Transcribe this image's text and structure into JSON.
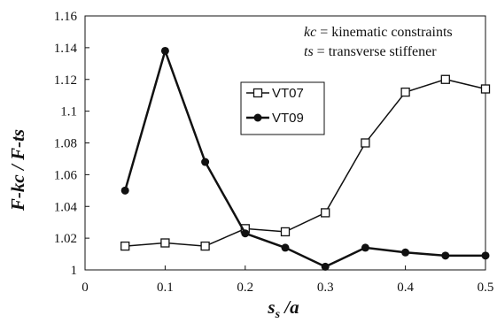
{
  "chart_data": {
    "type": "line",
    "xlabel": {
      "main": "s",
      "sub": "s",
      "rest": " /a"
    },
    "ylabel": "F-kc / F-ts",
    "xlim": [
      0,
      0.5
    ],
    "ylim": [
      1,
      1.16
    ],
    "x_ticks": [
      0,
      0.1,
      0.2,
      0.3,
      0.4,
      0.5
    ],
    "x_tick_labels": [
      "0",
      "0.1",
      "0.2",
      "0.3",
      "0.4",
      "0.5"
    ],
    "y_ticks": [
      1,
      1.02,
      1.04,
      1.06,
      1.08,
      1.1,
      1.12,
      1.14,
      1.16
    ],
    "y_tick_labels": [
      "1",
      "1.02",
      "1.04",
      "1.06",
      "1.08",
      "1.1",
      "1.12",
      "1.14",
      "1.16"
    ],
    "grid": false,
    "legend_position": "center-right",
    "annotations": [
      {
        "abbr": "kc",
        "text": " = kinematic  constraints"
      },
      {
        "abbr": "ts",
        "text": " = transverse  stiffener"
      }
    ],
    "series": [
      {
        "name": "VT07",
        "marker": "open-square",
        "color": "#111111",
        "x": [
          0.05,
          0.1,
          0.15,
          0.2,
          0.25,
          0.3,
          0.35,
          0.4,
          0.45,
          0.5
        ],
        "y": [
          1.015,
          1.017,
          1.015,
          1.026,
          1.024,
          1.036,
          1.08,
          1.112,
          1.12,
          1.114
        ]
      },
      {
        "name": "VT09",
        "marker": "filled-circle",
        "color": "#111111",
        "x": [
          0.05,
          0.1,
          0.15,
          0.2,
          0.25,
          0.3,
          0.35,
          0.4,
          0.45,
          0.5
        ],
        "y": [
          1.05,
          1.138,
          1.068,
          1.023,
          1.014,
          1.002,
          1.014,
          1.011,
          1.009,
          1.009
        ]
      }
    ]
  }
}
